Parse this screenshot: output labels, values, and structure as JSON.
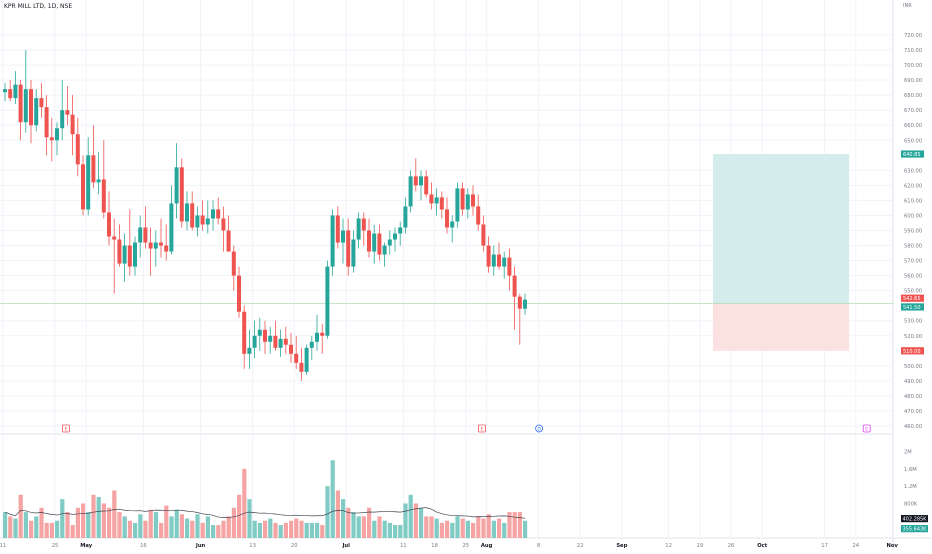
{
  "header": {
    "symbol_title": "KPR MILL LTD, 1D, NSE",
    "currency": "INR"
  },
  "colors": {
    "up": "#26a69a",
    "down": "#ef5350",
    "up_vol": "#80cbc4",
    "down_vol": "#f5a3a3",
    "target_zone": "#d4edec",
    "stop_zone": "#fbe1e0",
    "grid": "#f0f3fa",
    "axis_text": "#787b86"
  },
  "chart_data": {
    "type": "candlestick",
    "ylim": [
      452,
      740
    ],
    "y_ticks": [
      "720.00",
      "710.00",
      "700.00",
      "690.00",
      "680.00",
      "670.00",
      "660.00",
      "650.00",
      "630.00",
      "620.00",
      "610.00",
      "600.00",
      "590.00",
      "580.00",
      "570.00",
      "560.00",
      "550.00",
      "530.00",
      "520.00",
      "500.00",
      "490.00",
      "480.00",
      "470.00",
      "460.00"
    ],
    "y_tick_values": [
      720,
      710,
      700,
      690,
      680,
      670,
      660,
      650,
      630,
      620,
      610,
      600,
      590,
      580,
      570,
      560,
      550,
      530,
      520,
      500,
      490,
      480,
      470,
      460
    ],
    "x_labels": [
      "11",
      "25",
      "May",
      "16",
      "Jun",
      "13",
      "20",
      "Jul",
      "11",
      "18",
      "25",
      "Aug",
      "8",
      "22",
      "Sep",
      "12",
      "19",
      "26",
      "Oct",
      "17",
      "24",
      "Nov"
    ],
    "x_label_index": [
      0,
      10,
      16,
      27,
      38,
      48,
      56,
      66,
      77,
      83,
      89,
      93,
      103,
      111,
      119,
      128,
      134,
      140,
      146,
      158,
      164,
      171
    ],
    "price_labels": [
      {
        "text": "640.85",
        "value": 640.85,
        "kind": "target"
      },
      {
        "text": "542.65",
        "value": 542.65,
        "kind": "current_red"
      },
      {
        "text": "541.50",
        "value": 541.5,
        "kind": "current_green"
      },
      {
        "text": "510.00",
        "value": 510.0,
        "kind": "stop"
      }
    ],
    "volume_ticks": [
      "2M",
      "1.6M",
      "1.2M",
      "800K"
    ],
    "volume_tick_values": [
      2000000,
      1600000,
      1200000,
      800000
    ],
    "volume_labels": [
      {
        "text": "402.285K",
        "value": 402285,
        "kind": "dark"
      },
      {
        "text": "355.643K",
        "value": 355643,
        "kind": "teal"
      }
    ],
    "volume_max": 2200000,
    "position": {
      "entry": 541.5,
      "target": 640.85,
      "stop": 510.0
    },
    "events": [
      {
        "label": "E",
        "index": 12,
        "color": "#ef5350"
      },
      {
        "label": "E",
        "index": 92,
        "color": "#ef5350"
      },
      {
        "label": "D",
        "index": 103,
        "color": "#2962ff"
      },
      {
        "label": "E",
        "index": 166,
        "color": "#e040fb"
      }
    ],
    "candles": [
      [
        682,
        688,
        676,
        684,
        600000
      ],
      [
        684,
        690,
        676,
        678,
        500000
      ],
      [
        678,
        696,
        674,
        687,
        450000
      ],
      [
        687,
        690,
        650,
        662,
        1000000
      ],
      [
        662,
        710,
        655,
        684,
        600000
      ],
      [
        684,
        690,
        648,
        660,
        400000
      ],
      [
        660,
        684,
        656,
        678,
        500000
      ],
      [
        678,
        688,
        665,
        672,
        700000
      ],
      [
        672,
        680,
        640,
        652,
        350000
      ],
      [
        652,
        665,
        636,
        650,
        350000
      ],
      [
        650,
        662,
        640,
        658,
        400000
      ],
      [
        658,
        690,
        650,
        670,
        900000
      ],
      [
        670,
        686,
        660,
        667,
        600000
      ],
      [
        667,
        680,
        640,
        654,
        300000
      ],
      [
        654,
        665,
        626,
        634,
        700000
      ],
      [
        634,
        640,
        600,
        604,
        800000
      ],
      [
        604,
        652,
        600,
        640,
        600000
      ],
      [
        640,
        660,
        618,
        622,
        1000000
      ],
      [
        622,
        642,
        614,
        624,
        950000
      ],
      [
        624,
        650,
        598,
        602,
        800000
      ],
      [
        602,
        616,
        580,
        586,
        700000
      ],
      [
        586,
        598,
        548,
        584,
        1100000
      ],
      [
        584,
        594,
        566,
        568,
        600000
      ],
      [
        568,
        588,
        556,
        580,
        500000
      ],
      [
        580,
        604,
        560,
        566,
        400000
      ],
      [
        566,
        586,
        560,
        582,
        350000
      ],
      [
        582,
        600,
        572,
        592,
        550000
      ],
      [
        592,
        606,
        578,
        582,
        400000
      ],
      [
        582,
        592,
        560,
        578,
        650000
      ],
      [
        578,
        590,
        566,
        582,
        600000
      ],
      [
        582,
        598,
        572,
        580,
        350000
      ],
      [
        580,
        594,
        570,
        576,
        750000
      ],
      [
        576,
        620,
        574,
        608,
        500000
      ],
      [
        608,
        648,
        598,
        632,
        650000
      ],
      [
        632,
        638,
        592,
        596,
        550000
      ],
      [
        596,
        616,
        590,
        608,
        450000
      ],
      [
        608,
        616,
        590,
        592,
        400000
      ],
      [
        592,
        606,
        586,
        600,
        550000
      ],
      [
        600,
        610,
        590,
        594,
        350000
      ],
      [
        594,
        610,
        588,
        598,
        500000
      ],
      [
        598,
        610,
        590,
        604,
        300000
      ],
      [
        604,
        612,
        594,
        598,
        300000
      ],
      [
        598,
        606,
        576,
        590,
        400000
      ],
      [
        590,
        600,
        576,
        576,
        500000
      ],
      [
        576,
        580,
        550,
        560,
        700000
      ],
      [
        560,
        566,
        532,
        536,
        1000000
      ],
      [
        536,
        540,
        498,
        508,
        1600000
      ],
      [
        508,
        524,
        498,
        512,
        900000
      ],
      [
        512,
        530,
        505,
        520,
        400000
      ],
      [
        520,
        532,
        510,
        524,
        350000
      ],
      [
        524,
        530,
        508,
        516,
        400000
      ],
      [
        516,
        526,
        508,
        520,
        450000
      ],
      [
        520,
        530,
        510,
        512,
        350000
      ],
      [
        512,
        524,
        506,
        518,
        300000
      ],
      [
        518,
        526,
        508,
        514,
        350000
      ],
      [
        514,
        522,
        502,
        508,
        400000
      ],
      [
        508,
        520,
        498,
        502,
        450000
      ],
      [
        502,
        512,
        490,
        496,
        400000
      ],
      [
        496,
        514,
        494,
        512,
        350000
      ],
      [
        512,
        520,
        504,
        516,
        350000
      ],
      [
        516,
        534,
        510,
        522,
        350000
      ],
      [
        522,
        528,
        508,
        520,
        300000
      ],
      [
        520,
        570,
        518,
        566,
        1200000
      ],
      [
        566,
        604,
        560,
        600,
        1800000
      ],
      [
        600,
        606,
        578,
        582,
        1100000
      ],
      [
        582,
        598,
        568,
        590,
        900000
      ],
      [
        590,
        598,
        560,
        566,
        700000
      ],
      [
        566,
        590,
        562,
        584,
        600000
      ],
      [
        584,
        602,
        578,
        598,
        500000
      ],
      [
        598,
        602,
        580,
        590,
        500000
      ],
      [
        590,
        598,
        572,
        576,
        700000
      ],
      [
        576,
        594,
        568,
        588,
        400000
      ],
      [
        588,
        594,
        570,
        574,
        500000
      ],
      [
        574,
        582,
        566,
        580,
        400000
      ],
      [
        580,
        590,
        574,
        584,
        350000
      ],
      [
        584,
        592,
        576,
        588,
        300000
      ],
      [
        588,
        596,
        580,
        592,
        300000
      ],
      [
        592,
        612,
        588,
        606,
        800000
      ],
      [
        606,
        630,
        602,
        626,
        1000000
      ],
      [
        626,
        638,
        616,
        620,
        800000
      ],
      [
        620,
        630,
        610,
        626,
        700000
      ],
      [
        626,
        630,
        612,
        614,
        500000
      ],
      [
        614,
        622,
        604,
        608,
        500000
      ],
      [
        608,
        618,
        600,
        612,
        450000
      ],
      [
        612,
        616,
        598,
        604,
        350000
      ],
      [
        604,
        612,
        588,
        592,
        400000
      ],
      [
        592,
        600,
        582,
        596,
        350000
      ],
      [
        596,
        622,
        592,
        618,
        500000
      ],
      [
        618,
        622,
        600,
        604,
        450000
      ],
      [
        604,
        618,
        598,
        614,
        400000
      ],
      [
        614,
        620,
        600,
        606,
        350000
      ],
      [
        606,
        614,
        590,
        594,
        500000
      ],
      [
        594,
        600,
        576,
        580,
        450000
      ],
      [
        580,
        586,
        562,
        566,
        550000
      ],
      [
        566,
        580,
        560,
        574,
        400000
      ],
      [
        574,
        582,
        564,
        566,
        450000
      ],
      [
        566,
        576,
        558,
        572,
        350000
      ],
      [
        572,
        578,
        550,
        560,
        600000
      ],
      [
        560,
        566,
        524,
        546,
        600000
      ],
      [
        546,
        548,
        514,
        538,
        600000
      ],
      [
        538,
        548,
        534,
        544,
        400000
      ]
    ]
  }
}
